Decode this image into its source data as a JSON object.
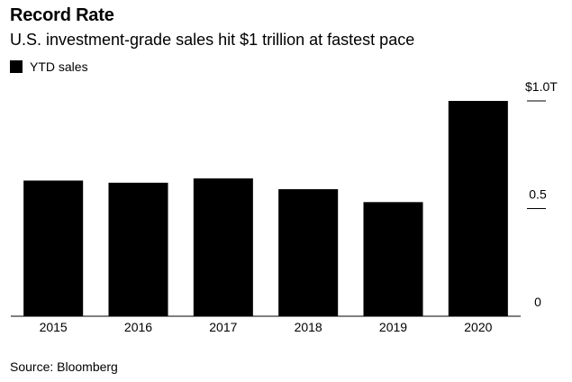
{
  "header": {
    "title": "Record Rate",
    "subtitle": "U.S. investment-grade sales hit $1 trillion at fastest pace"
  },
  "legend": {
    "label": "YTD sales"
  },
  "footer": {
    "source": "Source: Bloomberg"
  },
  "colors": {
    "bar": "#000000",
    "background": "#ffffff"
  },
  "chart_data": {
    "type": "bar",
    "title": "Record Rate",
    "subtitle": "U.S. investment-grade sales hit $1 trillion at fastest pace",
    "categories": [
      "2015",
      "2016",
      "2017",
      "2018",
      "2019",
      "2020"
    ],
    "series": [
      {
        "name": "YTD sales",
        "values": [
          0.63,
          0.62,
          0.64,
          0.59,
          0.53,
          1.0
        ]
      }
    ],
    "ylim": [
      0,
      1.0
    ],
    "yticks": [
      {
        "value": 0,
        "label": "0"
      },
      {
        "value": 0.5,
        "label": "0.5"
      },
      {
        "value": 1.0,
        "label": "$1.0T"
      }
    ],
    "xlabel": "",
    "ylabel": "",
    "legend_position": "top-left",
    "grid": false
  }
}
